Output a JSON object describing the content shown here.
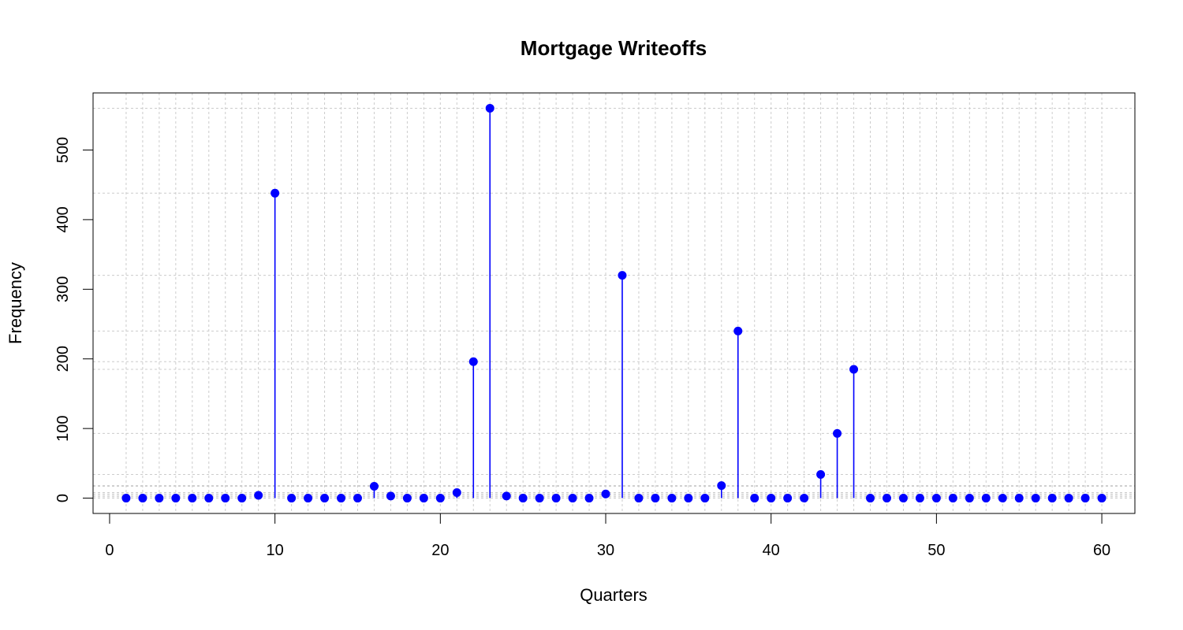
{
  "chart_data": {
    "type": "scatter",
    "style": "lollipop",
    "title": "Mortgage Writeoffs",
    "xlabel": "Quarters",
    "ylabel": "Frequency",
    "xlim": [
      -1,
      62
    ],
    "ylim": [
      -22,
      582
    ],
    "x_ticks": [
      0,
      10,
      20,
      30,
      40,
      50,
      60
    ],
    "y_ticks": [
      0,
      100,
      200,
      300,
      400,
      500
    ],
    "grid": true,
    "grid_y": [
      0,
      2,
      4,
      6,
      8,
      17,
      18,
      34,
      93,
      185,
      196,
      240,
      320,
      438,
      560
    ],
    "color": "#0000FF",
    "grid_color": "#CCCCCC",
    "x": [
      1,
      2,
      3,
      4,
      5,
      6,
      7,
      8,
      9,
      10,
      11,
      12,
      13,
      14,
      15,
      16,
      17,
      18,
      19,
      20,
      21,
      22,
      23,
      24,
      25,
      26,
      27,
      28,
      29,
      30,
      31,
      32,
      33,
      34,
      35,
      36,
      37,
      38,
      39,
      40,
      41,
      42,
      43,
      44,
      45,
      46,
      47,
      48,
      49,
      50,
      51,
      52,
      53,
      54,
      55,
      56,
      57,
      58,
      59,
      60
    ],
    "values": [
      0,
      0,
      0,
      0,
      0,
      0,
      0,
      0,
      4,
      438,
      0,
      0,
      0,
      0,
      0,
      17,
      3,
      0,
      0,
      0,
      8,
      196,
      560,
      3,
      0,
      0,
      0,
      0,
      0,
      6,
      320,
      0,
      0,
      0,
      0,
      0,
      18,
      240,
      0,
      0,
      0,
      0,
      34,
      93,
      185,
      0,
      0,
      0,
      0,
      0,
      0,
      0,
      0,
      0,
      0,
      0,
      0,
      0,
      0,
      0
    ]
  }
}
